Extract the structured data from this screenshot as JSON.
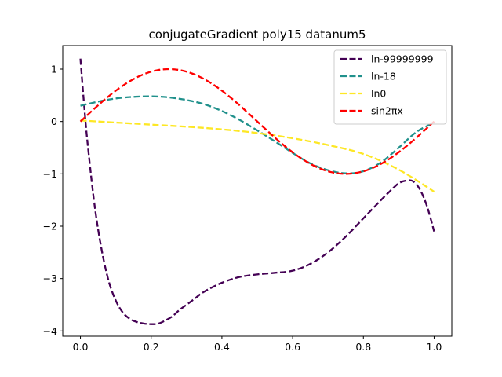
{
  "chart_data": {
    "type": "line",
    "title": "conjugateGradient poly15 datanum5",
    "xlabel": "",
    "ylabel": "",
    "xlim": [
      -0.05,
      1.05
    ],
    "ylim": [
      -4.1,
      1.45
    ],
    "xticks": [
      0.0,
      0.2,
      0.4,
      0.6,
      0.8,
      1.0
    ],
    "xtick_labels": [
      "0.0",
      "0.2",
      "0.4",
      "0.6",
      "0.8",
      "1.0"
    ],
    "yticks": [
      -4,
      -3,
      -2,
      -1,
      0,
      1
    ],
    "ytick_labels": [
      "−4",
      "−3",
      "−2",
      "−1",
      "0",
      "1"
    ],
    "grid": false,
    "legend_position": "top-right",
    "line_style": "dashed",
    "series": [
      {
        "name": "ln-99999999",
        "color": "#440154",
        "x": [
          0.0,
          0.01,
          0.02,
          0.04,
          0.06,
          0.08,
          0.1,
          0.12,
          0.14,
          0.16,
          0.18,
          0.2,
          0.22,
          0.24,
          0.26,
          0.28,
          0.3,
          0.32,
          0.35,
          0.4,
          0.45,
          0.5,
          0.55,
          0.6,
          0.65,
          0.7,
          0.75,
          0.8,
          0.85,
          0.88,
          0.9,
          0.92,
          0.94,
          0.96,
          0.98,
          1.0
        ],
        "y": [
          1.2,
          0.35,
          -0.4,
          -1.6,
          -2.45,
          -3.05,
          -3.42,
          -3.65,
          -3.77,
          -3.83,
          -3.86,
          -3.87,
          -3.86,
          -3.8,
          -3.72,
          -3.6,
          -3.5,
          -3.4,
          -3.25,
          -3.08,
          -2.97,
          -2.92,
          -2.89,
          -2.85,
          -2.72,
          -2.5,
          -2.2,
          -1.85,
          -1.5,
          -1.3,
          -1.18,
          -1.13,
          -1.14,
          -1.3,
          -1.62,
          -2.1
        ]
      },
      {
        "name": "ln-18",
        "color": "#21918c",
        "x": [
          0.0,
          0.05,
          0.1,
          0.15,
          0.2,
          0.25,
          0.3,
          0.35,
          0.4,
          0.45,
          0.5,
          0.55,
          0.6,
          0.65,
          0.7,
          0.75,
          0.8,
          0.85,
          0.9,
          0.95,
          1.0
        ],
        "y": [
          0.3,
          0.38,
          0.44,
          0.47,
          0.48,
          0.46,
          0.41,
          0.33,
          0.2,
          0.03,
          -0.17,
          -0.38,
          -0.6,
          -0.8,
          -0.93,
          -0.99,
          -0.95,
          -0.78,
          -0.5,
          -0.2,
          -0.02
        ]
      },
      {
        "name": "ln0",
        "color": "#fde725",
        "x": [
          0.0,
          0.1,
          0.2,
          0.3,
          0.4,
          0.5,
          0.6,
          0.7,
          0.8,
          0.9,
          1.0
        ],
        "y": [
          0.02,
          -0.02,
          -0.06,
          -0.1,
          -0.15,
          -0.22,
          -0.32,
          -0.45,
          -0.62,
          -0.92,
          -1.34
        ]
      },
      {
        "name": "sin2πx",
        "color": "#ff0000",
        "function": "sin2pix",
        "samples": 120
      }
    ]
  }
}
